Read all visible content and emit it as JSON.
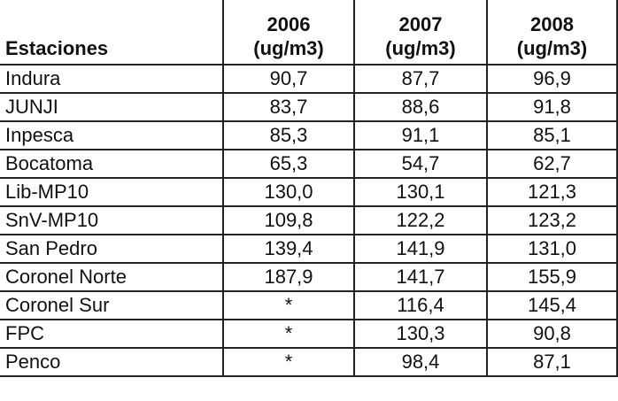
{
  "table": {
    "header": [
      "Estaciones",
      {
        "year": "2006",
        "unit": "(ug/m3)"
      },
      {
        "year": "2007",
        "unit": "(ug/m3)"
      },
      {
        "year": "2008",
        "unit": "(ug/m3)"
      }
    ],
    "rows": [
      [
        "Indura",
        "90,7",
        "87,7",
        "96,9"
      ],
      [
        "JUNJI",
        "83,7",
        "88,6",
        "91,8"
      ],
      [
        "Inpesca",
        "85,3",
        "91,1",
        "85,1"
      ],
      [
        "Bocatoma",
        "65,3",
        "54,7",
        "62,7"
      ],
      [
        "Lib-MP10",
        "130,0",
        "130,1",
        "121,3"
      ],
      [
        "SnV-MP10",
        "109,8",
        "122,2",
        "123,2"
      ],
      [
        "San Pedro",
        "139,4",
        "141,9",
        "131,0"
      ],
      [
        "Coronel Norte",
        "187,9",
        "141,7",
        "155,9"
      ],
      [
        "Coronel Sur",
        "*",
        "116,4",
        "145,4"
      ],
      [
        "FPC",
        "*",
        "130,3",
        "90,8"
      ],
      [
        "Penco",
        "*",
        "98,4",
        "87,1"
      ]
    ]
  }
}
